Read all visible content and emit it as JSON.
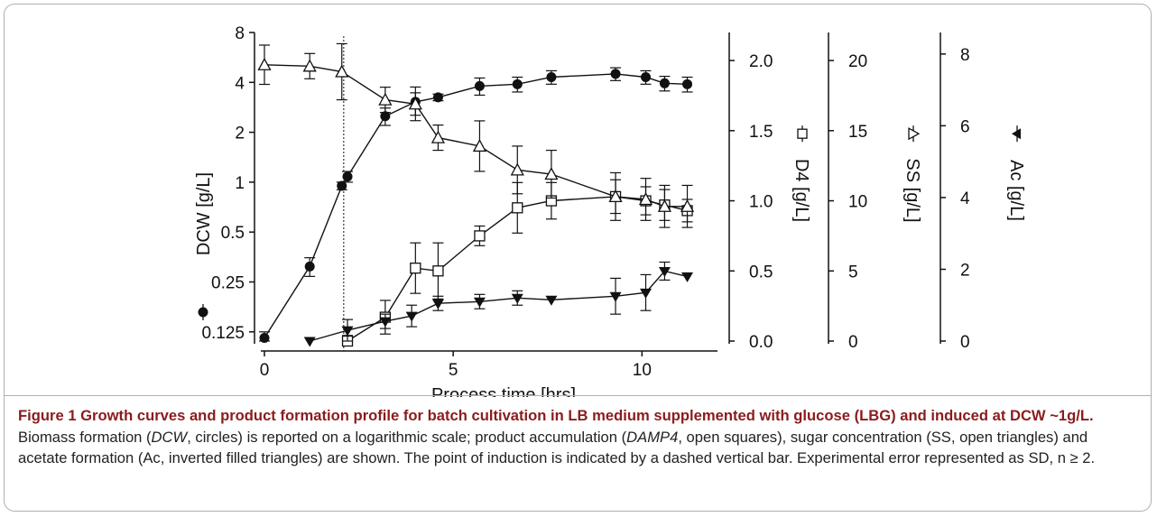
{
  "chart_data": {
    "type": "line",
    "xlabel": "Process time [hrs]",
    "x_ticks": [
      "0",
      "5",
      "10"
    ],
    "xlim": [
      0,
      12
    ],
    "induction_time": 2.1,
    "axes": {
      "dcw": {
        "label": "DCW [g/L]",
        "scale": "log2",
        "ylim": [
          0.11,
          8
        ],
        "ticks": [
          "0.125",
          "0.25",
          "0.5",
          "1",
          "2",
          "4",
          "8"
        ]
      },
      "d4": {
        "label": "D4 [g/L]",
        "ylim": [
          0,
          2.2
        ],
        "ticks": [
          "0.0",
          "0.5",
          "1.0",
          "1.5",
          "2.0"
        ]
      },
      "ss": {
        "label": "SS [g/L]",
        "ylim": [
          0,
          22
        ],
        "ticks": [
          "0",
          "5",
          "10",
          "15",
          "20"
        ]
      },
      "ac": {
        "label": "Ac [g/L]",
        "ylim": [
          0,
          8.6
        ],
        "ticks": [
          "0",
          "2",
          "4",
          "6",
          "8"
        ]
      }
    },
    "series": [
      {
        "name": "DCW",
        "axis": "dcw",
        "marker": "circle-filled",
        "x": [
          0,
          1.2,
          2.05,
          2.2,
          3.2,
          4.0,
          4.6,
          5.7,
          6.7,
          7.6,
          9.3,
          10.1,
          10.6,
          11.2
        ],
        "y": [
          0.115,
          0.31,
          0.95,
          1.08,
          2.5,
          3.05,
          3.25,
          3.8,
          3.9,
          4.3,
          4.5,
          4.3,
          3.95,
          3.9
        ],
        "err": [
          0.01,
          0.04,
          0.05,
          0.08,
          0.3,
          0.7,
          0.15,
          0.45,
          0.4,
          0.4,
          0.4,
          0.4,
          0.4,
          0.4
        ]
      },
      {
        "name": "D4",
        "axis": "d4",
        "marker": "square-open",
        "x": [
          2.2,
          3.2,
          4.0,
          4.6,
          5.7,
          6.7,
          7.6,
          9.3,
          10.1,
          10.6,
          11.2
        ],
        "y": [
          0.0,
          0.17,
          0.52,
          0.5,
          0.75,
          0.95,
          1.0,
          1.03,
          1.0,
          0.97,
          0.93
        ],
        "err": [
          0.04,
          0.12,
          0.18,
          0.2,
          0.07,
          0.18,
          0.13,
          0.12,
          0.1,
          0.11,
          0.08
        ]
      },
      {
        "name": "SS",
        "axis": "ss",
        "marker": "triangle-open",
        "x": [
          0,
          1.2,
          2.05,
          3.2,
          4.0,
          4.6,
          5.7,
          6.7,
          7.6,
          9.3,
          10.1,
          10.6,
          11.2
        ],
        "y": [
          19.7,
          19.6,
          19.2,
          17.2,
          16.9,
          14.5,
          13.9,
          12.2,
          11.9,
          10.3,
          10.1,
          9.6,
          9.6
        ],
        "err": [
          1.4,
          0.9,
          2.0,
          0.9,
          0.8,
          0.9,
          1.8,
          1.7,
          1.7,
          1.7,
          1.5,
          1.5,
          1.5
        ]
      },
      {
        "name": "Ac",
        "axis": "ac",
        "marker": "triangle-down-filled",
        "x": [
          1.2,
          2.2,
          3.2,
          3.9,
          4.6,
          5.7,
          6.7,
          7.6,
          9.3,
          10.1,
          10.6,
          11.2
        ],
        "y": [
          0.0,
          0.3,
          0.55,
          0.7,
          1.05,
          1.1,
          1.2,
          1.15,
          1.25,
          1.35,
          1.95,
          1.8
        ],
        "err": [
          0.0,
          0.3,
          0.2,
          0.3,
          0.2,
          0.2,
          0.2,
          0.0,
          0.5,
          0.5,
          0.25,
          0.0
        ]
      }
    ]
  },
  "caption": {
    "bold": "Figure 1 Growth curves and product formation profile for batch cultivation in LB medium supplemented with glucose (LBG) and induced at DCW ~1g/L.",
    "t1": " Biomass formation (",
    "i1": "DCW",
    "t2": ", circles) is reported on a logarithmic scale; product accumulation (",
    "i2": "DAMP4",
    "t3": ", open squares), sugar concentration (SS, open triangles) and acetate formation (Ac, inverted filled triangles) are shown. The point of induction is indicated by a dashed vertical bar. Experimental error represented as SD, n ≥ 2."
  }
}
